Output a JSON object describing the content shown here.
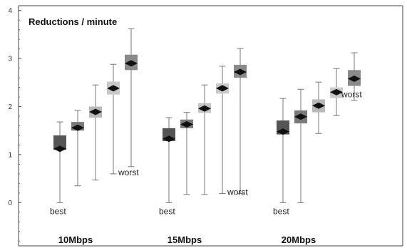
{
  "chart_data": {
    "type": "box",
    "title": "Reductions / minute",
    "ylim": [
      -0.9,
      4.1
    ],
    "y_ticks": [
      0,
      1,
      2,
      3,
      4
    ],
    "groups": [
      {
        "label": "10Mbps",
        "boxes": [
          {
            "min": 0.0,
            "q1": 1.1,
            "mean": 1.12,
            "q3": 1.4,
            "max": 1.68,
            "color": "#555555"
          },
          {
            "min": 0.35,
            "q1": 1.5,
            "mean": 1.56,
            "q3": 1.68,
            "max": 1.92,
            "color": "#7a7a7a"
          },
          {
            "min": 0.47,
            "q1": 1.77,
            "mean": 1.89,
            "q3": 2.0,
            "max": 2.45,
            "color": "#b9b9b9"
          },
          {
            "min": 0.6,
            "q1": 2.25,
            "mean": 2.38,
            "q3": 2.52,
            "max": 2.88,
            "color": "#c9c9c9"
          },
          {
            "min": 0.75,
            "q1": 2.76,
            "mean": 2.9,
            "q3": 3.08,
            "max": 3.62,
            "color": "#8a8a8a"
          }
        ],
        "annotations": [
          {
            "text": "best",
            "box": 0
          },
          {
            "text": "worst",
            "box": 4
          }
        ]
      },
      {
        "label": "15Mbps",
        "boxes": [
          {
            "min": 0.0,
            "q1": 1.28,
            "mean": 1.33,
            "q3": 1.55,
            "max": 1.77,
            "color": "#555555"
          },
          {
            "min": 0.17,
            "q1": 1.55,
            "mean": 1.63,
            "q3": 1.73,
            "max": 1.88,
            "color": "#7a7a7a"
          },
          {
            "min": 0.17,
            "q1": 1.87,
            "mean": 1.96,
            "q3": 2.07,
            "max": 2.45,
            "color": "#c2c2c2"
          },
          {
            "min": 0.19,
            "q1": 2.27,
            "mean": 2.38,
            "q3": 2.48,
            "max": 2.84,
            "color": "#c9c9c9"
          },
          {
            "min": 0.19,
            "q1": 2.6,
            "mean": 2.72,
            "q3": 2.87,
            "max": 3.21,
            "color": "#8a8a8a"
          }
        ],
        "annotations": [
          {
            "text": "best",
            "box": 0
          },
          {
            "text": "worst",
            "box": 4
          }
        ]
      },
      {
        "label": "20Mbps",
        "boxes": [
          {
            "min": 0.0,
            "q1": 1.42,
            "mean": 1.48,
            "q3": 1.71,
            "max": 2.17,
            "color": "#555555"
          },
          {
            "min": 0.0,
            "q1": 1.65,
            "mean": 1.79,
            "q3": 1.92,
            "max": 2.36,
            "color": "#7a7a7a"
          },
          {
            "min": 1.44,
            "q1": 1.88,
            "mean": 2.02,
            "q3": 2.15,
            "max": 2.51,
            "color": "#b9b9b9"
          },
          {
            "min": 1.81,
            "q1": 2.18,
            "mean": 2.3,
            "q3": 2.4,
            "max": 2.79,
            "color": "#c9c9c9"
          },
          {
            "min": 2.13,
            "q1": 2.43,
            "mean": 2.58,
            "q3": 2.76,
            "max": 3.12,
            "color": "#8a8a8a"
          }
        ],
        "annotations": [
          {
            "text": "best",
            "box": 0
          },
          {
            "text": "worst",
            "box": 4
          }
        ]
      }
    ]
  }
}
